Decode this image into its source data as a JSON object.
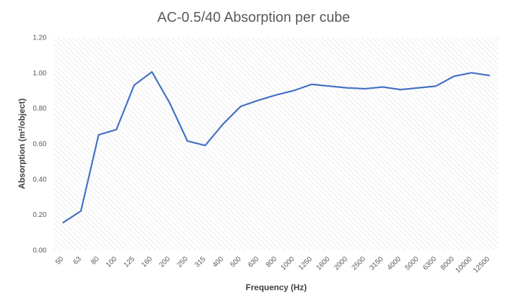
{
  "chart_data": {
    "type": "line",
    "title": "AC-0.5/40 Absorption per cube",
    "xlabel": "Frequency (Hz)",
    "ylabel": "Absorption (m²/object)",
    "categories": [
      "50",
      "63",
      "80",
      "100",
      "125",
      "160",
      "200",
      "250",
      "315",
      "400",
      "500",
      "630",
      "800",
      "1000",
      "1250",
      "1600",
      "2000",
      "2500",
      "3150",
      "4000",
      "5000",
      "6300",
      "8000",
      "10000",
      "12500"
    ],
    "series": [
      {
        "values": [
          0.155,
          0.22,
          0.65,
          0.68,
          0.93,
          1.005,
          0.83,
          0.615,
          0.59,
          0.71,
          0.81,
          0.845,
          0.875,
          0.9,
          0.935,
          0.925,
          0.915,
          0.91,
          0.92,
          0.905,
          0.915,
          0.925,
          0.98,
          1.0,
          0.985
        ],
        "color": "#4472C4"
      }
    ],
    "ylim": [
      0,
      1.2
    ],
    "yticks": [
      "0.00",
      "0.20",
      "0.40",
      "0.60",
      "0.80",
      "1.00",
      "1.20"
    ],
    "grid": true,
    "grid_style": "diagonal-hatch",
    "legend": "none"
  }
}
